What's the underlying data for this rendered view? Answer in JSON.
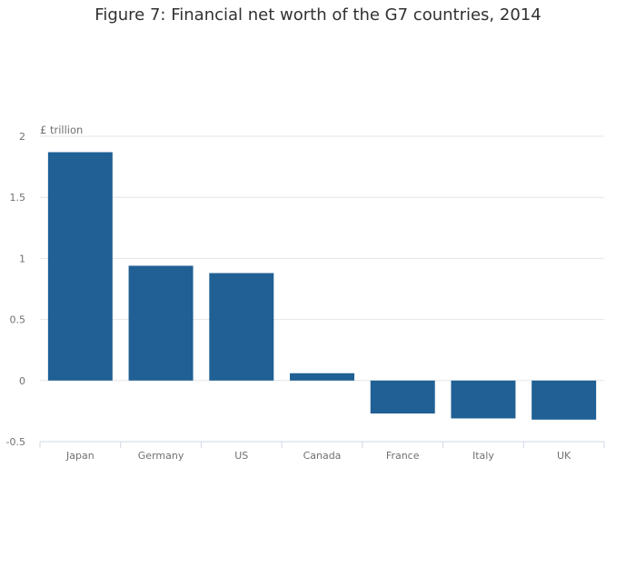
{
  "chart_data": {
    "type": "bar",
    "title": "Figure 7: Financial net worth of the G7 countries, 2014",
    "unit_label": "£ trillion",
    "categories": [
      "Japan",
      "Germany",
      "US",
      "Canada",
      "France",
      "Italy",
      "UK"
    ],
    "values": [
      1.87,
      0.94,
      0.88,
      0.06,
      -0.27,
      -0.31,
      -0.32
    ],
    "ylim": [
      -0.5,
      2
    ],
    "yticks": [
      {
        "value": 2,
        "label": "2"
      },
      {
        "value": 1.5,
        "label": "1.5"
      },
      {
        "value": 1,
        "label": "1"
      },
      {
        "value": 0.5,
        "label": "0.5"
      },
      {
        "value": 0,
        "label": "0"
      },
      {
        "value": -0.5,
        "label": "-0.5"
      }
    ],
    "grid": true,
    "legend": "none",
    "bar_color": "#206095",
    "grid_color": "#e6e6e6",
    "axis_color": "#cfd8e3"
  }
}
